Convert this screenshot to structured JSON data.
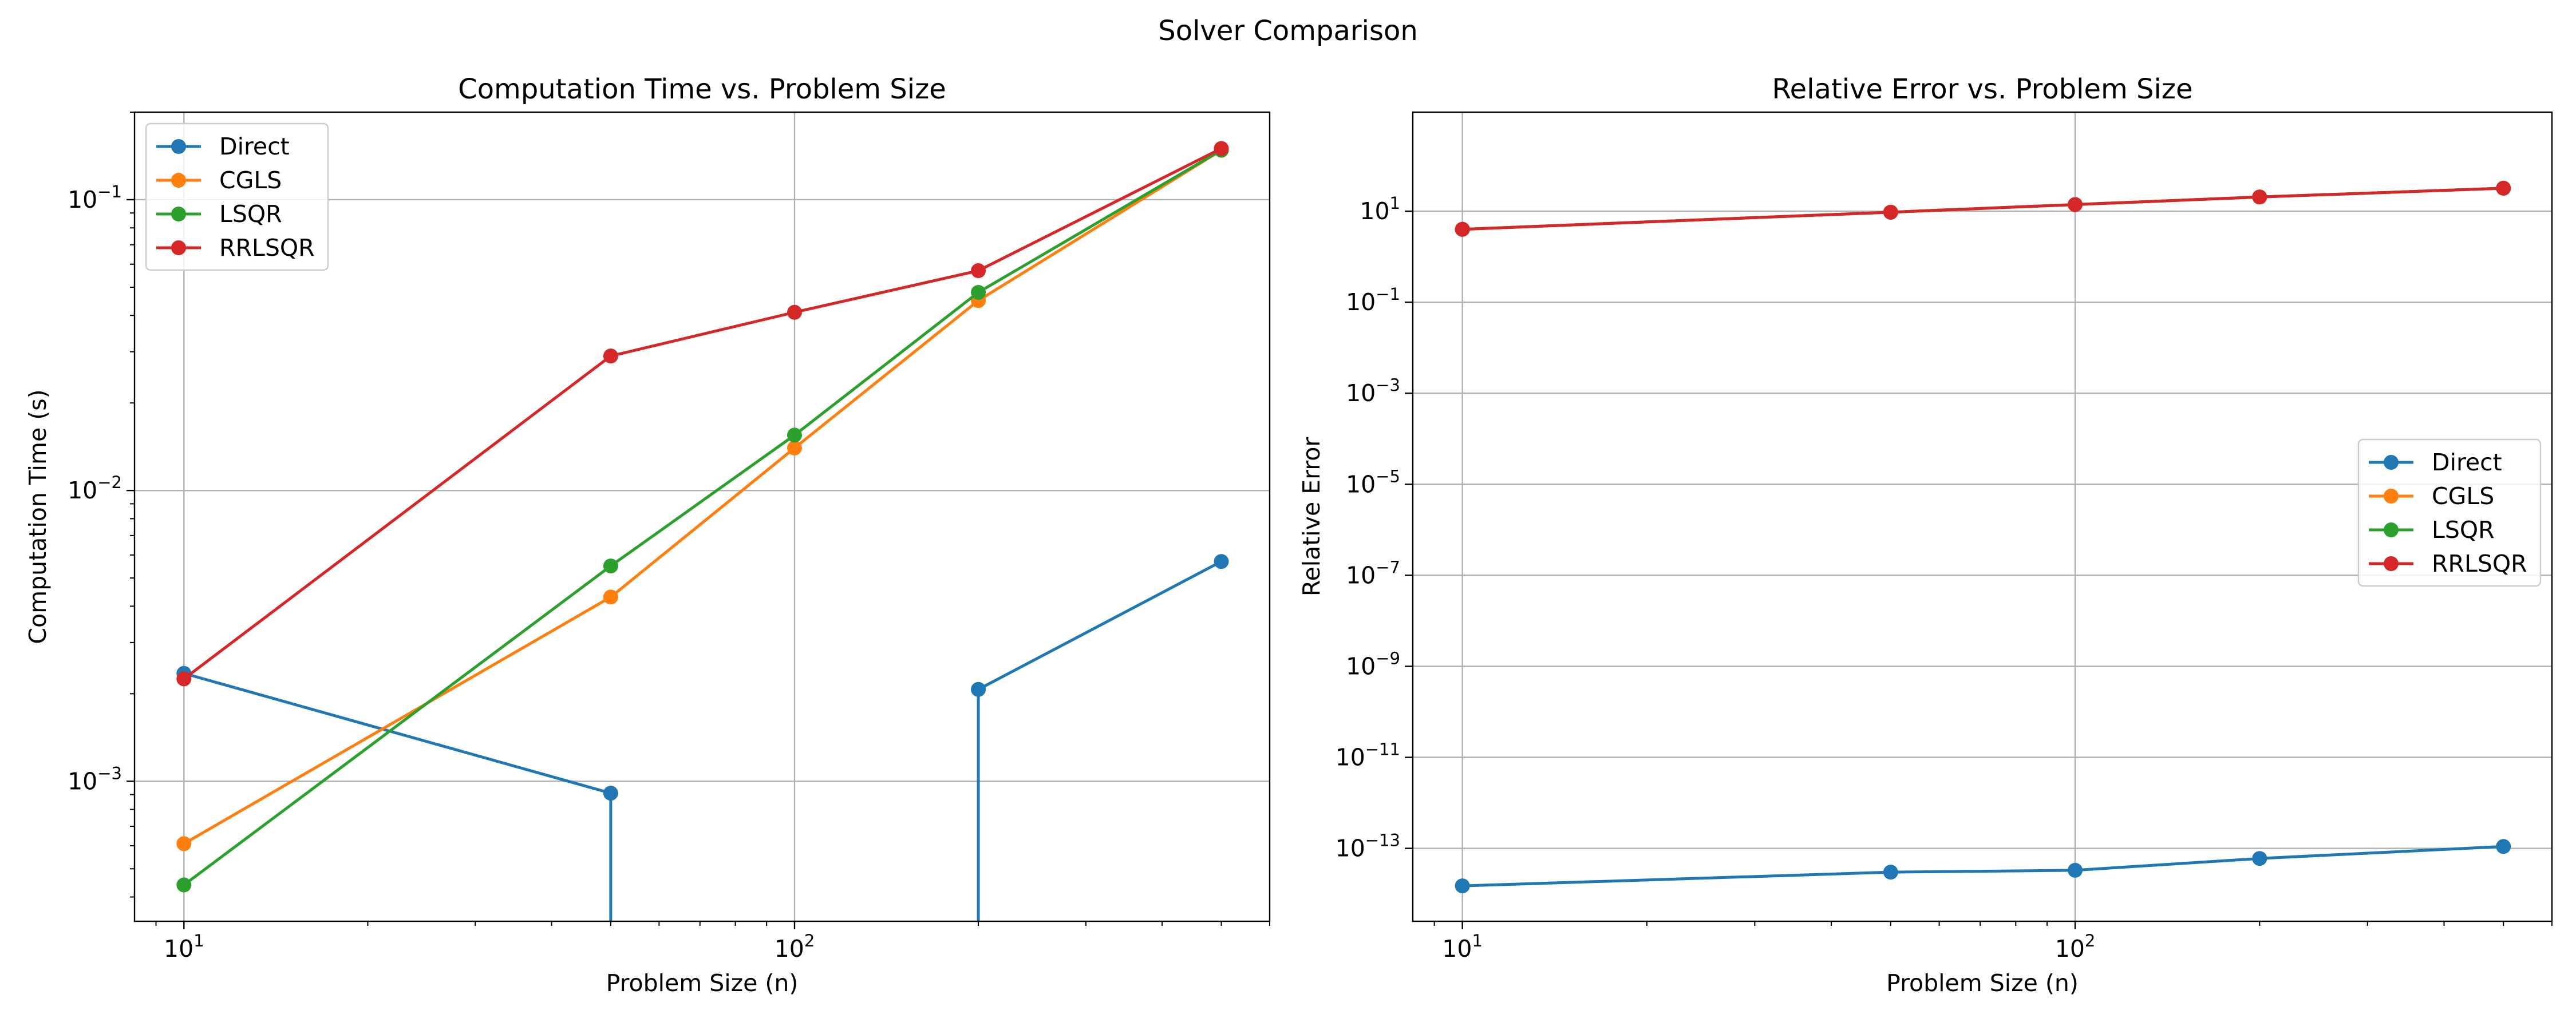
{
  "suptitle": "Solver Comparison",
  "chart_data": [
    {
      "type": "line",
      "title": "Computation Time vs. Problem Size",
      "xlabel": "Problem Size (n)",
      "ylabel": "Computation Time (s)",
      "xscale": "log",
      "yscale": "log",
      "xlim": [
        8.3,
        600
      ],
      "ylim": [
        0.00033,
        0.2
      ],
      "xticks": [
        {
          "base": "10",
          "exp": "1",
          "value": 10
        },
        {
          "base": "10",
          "exp": "2",
          "value": 100
        }
      ],
      "yticks": [
        {
          "base": "10",
          "exp": "−3",
          "value": 0.001
        },
        {
          "base": "10",
          "exp": "−2",
          "value": 0.01
        },
        {
          "base": "10",
          "exp": "−1",
          "value": 0.1
        }
      ],
      "grid": true,
      "legend": "upper left",
      "x": [
        10,
        50,
        100,
        200,
        500
      ],
      "series": [
        {
          "name": "Direct",
          "color": "#1f77b4",
          "values": [
            0.00235,
            0.00091,
            null,
            0.00207,
            0.0057
          ]
        },
        {
          "name": "CGLS",
          "color": "#ff7f0e",
          "values": [
            0.00061,
            0.0043,
            0.014,
            0.045,
            0.148
          ]
        },
        {
          "name": "LSQR",
          "color": "#2ca02c",
          "values": [
            0.00044,
            0.0055,
            0.0155,
            0.048,
            0.148
          ]
        },
        {
          "name": "RRLSQR",
          "color": "#d62728",
          "values": [
            0.00225,
            0.029,
            0.041,
            0.057,
            0.15
          ]
        }
      ]
    },
    {
      "type": "line",
      "title": "Relative Error vs. Problem Size",
      "xlabel": "Problem Size (n)",
      "ylabel": "Relative Error",
      "xscale": "log",
      "yscale": "log",
      "xlim": [
        8.3,
        600
      ],
      "ylim": [
        2.5e-15,
        1500
      ],
      "xticks": [
        {
          "base": "10",
          "exp": "1",
          "value": 10
        },
        {
          "base": "10",
          "exp": "2",
          "value": 100
        }
      ],
      "yticks": [
        {
          "base": "10",
          "exp": "−13",
          "value": 1e-13
        },
        {
          "base": "10",
          "exp": "−11",
          "value": 1e-11
        },
        {
          "base": "10",
          "exp": "−9",
          "value": 1e-09
        },
        {
          "base": "10",
          "exp": "−7",
          "value": 1e-07
        },
        {
          "base": "10",
          "exp": "−5",
          "value": 1e-05
        },
        {
          "base": "10",
          "exp": "−3",
          "value": 0.001
        },
        {
          "base": "10",
          "exp": "−1",
          "value": 0.1
        },
        {
          "base": "10",
          "exp": "1",
          "value": 10
        }
      ],
      "grid": true,
      "legend": "center right",
      "x": [
        10,
        50,
        100,
        200,
        500
      ],
      "series": [
        {
          "name": "Direct",
          "color": "#1f77b4",
          "values": [
            1.5e-14,
            3e-14,
            3.3e-14,
            6e-14,
            1.1e-13
          ]
        },
        {
          "name": "CGLS",
          "color": "#ff7f0e",
          "values": [
            4,
            9.5,
            14,
            20.5,
            32
          ]
        },
        {
          "name": "LSQR",
          "color": "#2ca02c",
          "values": [
            4,
            9.5,
            14,
            20.5,
            32
          ]
        },
        {
          "name": "RRLSQR",
          "color": "#d62728",
          "values": [
            4,
            9.5,
            14,
            20.5,
            32
          ]
        }
      ]
    }
  ]
}
